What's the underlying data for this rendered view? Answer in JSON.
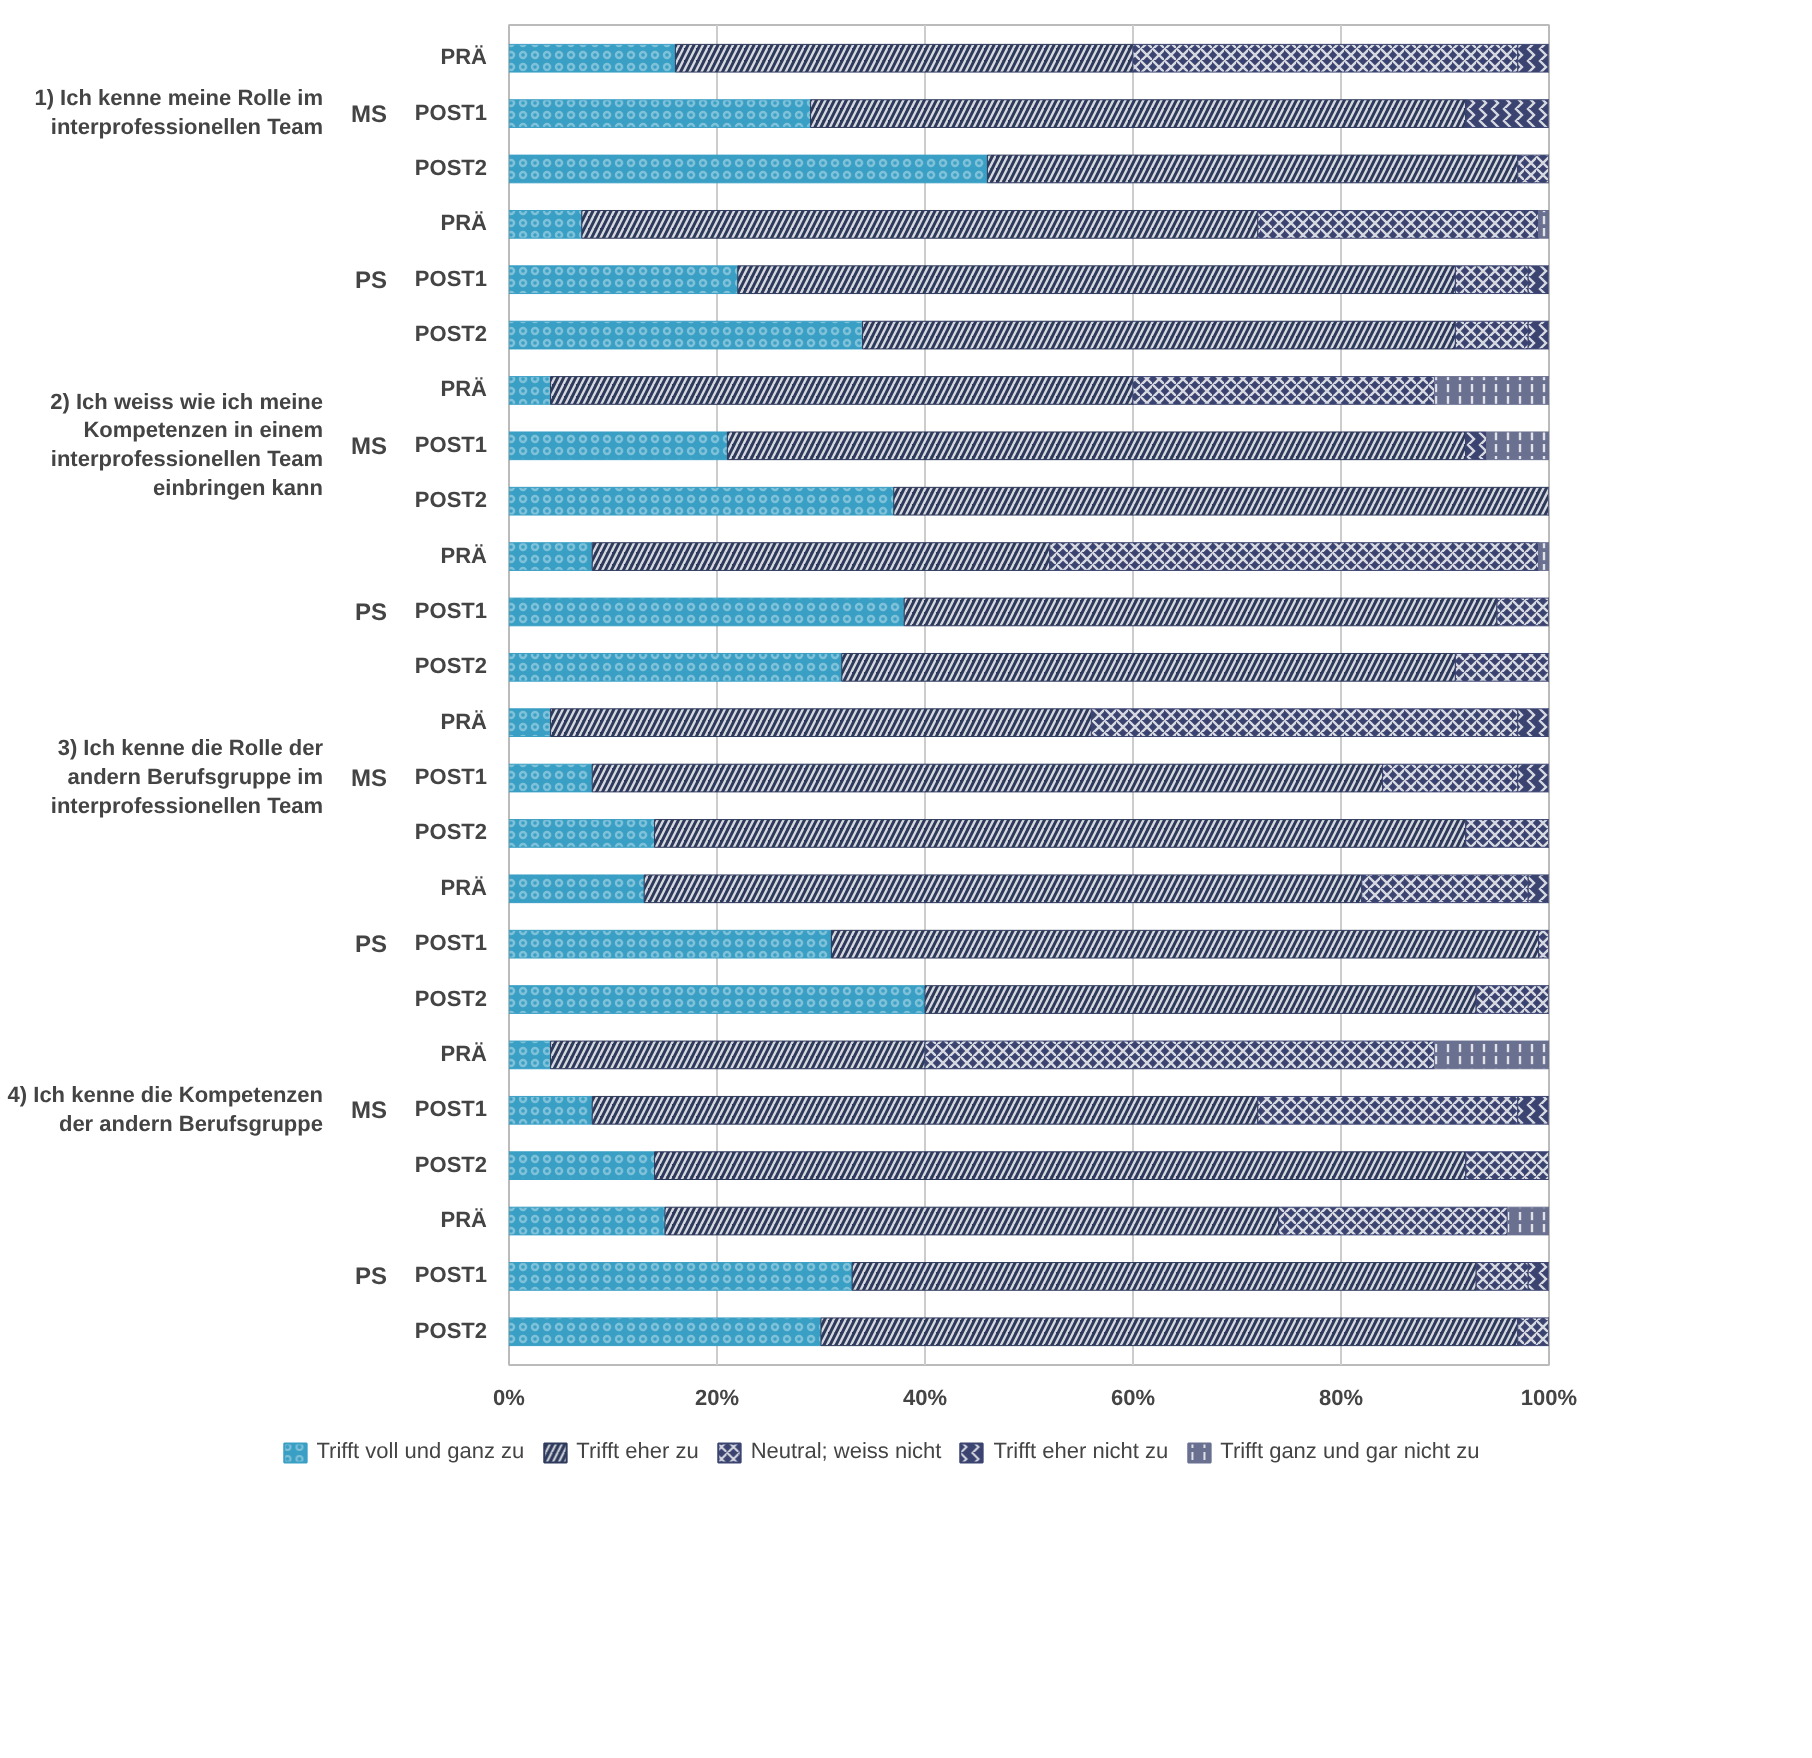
{
  "chart_data": {
    "type": "bar",
    "orientation": "horizontal",
    "stacked": true,
    "categories": [
      "PRÄ",
      "POST1",
      "POST2",
      "PRÄ",
      "POST1",
      "POST2",
      "PRÄ",
      "POST1",
      "POST2",
      "PRÄ",
      "POST1",
      "POST2",
      "PRÄ",
      "POST1",
      "POST2",
      "PRÄ",
      "POST1",
      "POST2",
      "PRÄ",
      "POST1",
      "POST2",
      "PRÄ",
      "POST1",
      "POST2"
    ],
    "series": [
      {
        "name": "Trifft voll und ganz zu",
        "color": "#3a9fc4",
        "values": [
          16,
          29,
          46,
          7,
          22,
          34,
          4,
          21,
          37,
          8,
          38,
          32,
          4,
          8,
          14,
          13,
          31,
          40,
          4,
          8,
          14,
          15,
          33,
          30
        ]
      },
      {
        "name": "Trifft eher zu",
        "color": "#2e3a5c",
        "values": [
          44,
          63,
          51,
          65,
          69,
          57,
          56,
          71,
          63,
          44,
          57,
          59,
          52,
          76,
          78,
          69,
          68,
          53,
          36,
          64,
          78,
          59,
          60,
          67
        ]
      },
      {
        "name": "Neutral; weiss nicht",
        "color": "#3b4470",
        "values": [
          37,
          0,
          3,
          27,
          7,
          7,
          29,
          0,
          0,
          47,
          5,
          9,
          41,
          13,
          8,
          16,
          1,
          7,
          49,
          25,
          8,
          22,
          5,
          3
        ]
      },
      {
        "name": "Trifft eher nicht zu",
        "color": "#3b4470",
        "values": [
          3,
          8,
          0,
          0,
          2,
          2,
          0,
          2,
          0,
          0,
          0,
          0,
          3,
          3,
          0,
          2,
          0,
          0,
          0,
          3,
          0,
          0,
          2,
          0
        ]
      },
      {
        "name": "Trifft ganz und gar nicht zu",
        "color": "#6a7090",
        "values": [
          0,
          0,
          0,
          1,
          0,
          0,
          11,
          6,
          0,
          1,
          0,
          0,
          0,
          0,
          0,
          0,
          0,
          0,
          11,
          0,
          0,
          4,
          0,
          0
        ]
      }
    ],
    "xlim": [
      0,
      100
    ],
    "xticks": [
      {
        "value": 0,
        "label": "0%"
      },
      {
        "value": 20,
        "label": "20%"
      },
      {
        "value": 40,
        "label": "40%"
      },
      {
        "value": 60,
        "label": "60%"
      },
      {
        "value": 80,
        "label": "80%"
      },
      {
        "value": 100,
        "label": "100%"
      }
    ],
    "grid": "x",
    "legend": "bottom",
    "annotations": [
      "1) Ich kenne meine Rolle im interprofessionellen Team",
      "2) Ich weiss wie ich meine Kompetenzen in einem interprofessionellen Team einbringen kann",
      "3) Ich kenne die Rolle der andern Berufsgruppe im interprofessionellen Team",
      "4) Ich kenne die Kompetenzen der andern Berufsgruppe",
      "MS",
      "PS",
      "MS",
      "PS",
      "MS",
      "PS",
      "MS",
      "PS"
    ]
  }
}
